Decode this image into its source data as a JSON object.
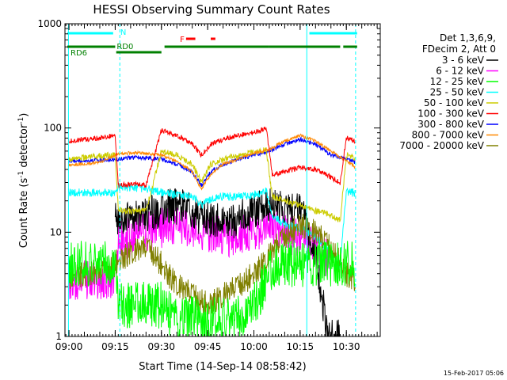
{
  "chart_data": {
    "type": "line",
    "title": "HESSI Observing Summary Count Rates",
    "xlabel": "Start Time (14-Sep-14 08:58:42)",
    "ylabel_main": "Count Rate (s",
    "ylabel_sup1": "-1",
    "ylabel_mid": " detector",
    "ylabel_sup2": "-1",
    "ylabel_end": ")",
    "yscale": "log",
    "ylim": [
      1,
      1000
    ],
    "xlim": [
      "08:58:42",
      "10:41:00"
    ],
    "x_ticks": [
      "09:00",
      "09:15",
      "09:30",
      "09:45",
      "10:00",
      "10:15",
      "10:30"
    ],
    "y_ticks": [
      "1000",
      "100",
      "10",
      "1"
    ],
    "legend": {
      "placement": "right",
      "header": [
        "Det 1,3,6,9,",
        "FDecim 2, Att 0"
      ],
      "entries": [
        {
          "label": "3 - 6 keV",
          "color": "#000000"
        },
        {
          "label": "6 - 12 keV",
          "color": "#ff00ff"
        },
        {
          "label": "12 - 25 keV",
          "color": "#00ff00"
        },
        {
          "label": "25 - 50 keV",
          "color": "#00ffff"
        },
        {
          "label": "50 - 100 keV",
          "color": "#cccc00"
        },
        {
          "label": "100 - 300 keV",
          "color": "#ff0000"
        },
        {
          "label": "300 - 800 keV",
          "color": "#0000ff"
        },
        {
          "label": "800 - 7000 keV",
          "color": "#ff8800"
        },
        {
          "label": "7000 - 20000 keV",
          "color": "#808000"
        }
      ]
    },
    "flags": [
      {
        "label": "N",
        "color": "#00ffff",
        "segments": [
          [
            "08:59:30",
            "09:14:20"
          ],
          [
            "10:18:00",
            "10:33:30"
          ]
        ]
      },
      {
        "label": "RD0",
        "color": "#008000",
        "segments": [
          [
            "09:15:20",
            "09:30:00"
          ]
        ]
      },
      {
        "label": "RD6",
        "color": "#008000",
        "segments": [
          [
            "08:59:30",
            "09:15:00"
          ],
          [
            "09:31:00",
            "10:05:00"
          ],
          [
            "10:05:00",
            "10:28:00"
          ],
          [
            "10:29:00",
            "10:33:30"
          ]
        ]
      },
      {
        "label": "F",
        "color": "#ff0000",
        "segments": [
          [
            "09:38:00",
            "09:41:00"
          ],
          [
            "09:46:00",
            "09:47:30"
          ]
        ]
      }
    ],
    "vertical_lines": [
      {
        "time": "08:59:50",
        "color": "#00ffff",
        "style": "solid"
      },
      {
        "time": "09:16:30",
        "color": "#00ffff",
        "style": "dashed"
      },
      {
        "time": "10:17:10",
        "color": "#00ffff",
        "style": "solid"
      },
      {
        "time": "10:33:00",
        "color": "#00ffff",
        "style": "dashed"
      }
    ],
    "series": [
      {
        "name": "3 - 6 keV",
        "color": "#000000",
        "noise": 0.35,
        "x": [
          "09:15:00",
          "09:20:00",
          "09:25:00",
          "09:30:00",
          "09:33:00",
          "09:38:00",
          "09:44:00",
          "09:48:00",
          "09:52:00",
          "09:56:00",
          "10:00:00",
          "10:04:00",
          "10:06:00",
          "10:10:00",
          "10:16:00",
          "10:20:00",
          "10:24:00",
          "10:28:00"
        ],
        "y": [
          14,
          14,
          15,
          16,
          18,
          17,
          13,
          13,
          12,
          14,
          16,
          20,
          18,
          17,
          16,
          6,
          1,
          1
        ]
      },
      {
        "name": "6 - 12 keV",
        "color": "#ff00ff",
        "noise": 0.4,
        "x": [
          "08:59:50",
          "09:05:00",
          "09:10:00",
          "09:15:00",
          "09:16:00",
          "09:20:00",
          "09:25:00",
          "09:30:00",
          "09:33:00",
          "09:38:00",
          "09:44:00",
          "09:48:00",
          "09:52:00",
          "09:56:00",
          "10:00:00",
          "10:04:00",
          "10:06:00",
          "10:10:00",
          "10:16:00",
          "10:20:00",
          "10:25:00"
        ],
        "y": [
          3.5,
          3.5,
          3.5,
          3.5,
          8,
          9,
          10,
          11,
          12,
          11,
          10,
          10,
          9,
          9.5,
          10,
          12,
          11,
          10,
          9,
          7,
          5
        ]
      },
      {
        "name": "12 - 25 keV",
        "color": "#00ff00",
        "noise": 0.45,
        "x": [
          "08:59:50",
          "09:05:00",
          "09:10:00",
          "09:15:00",
          "09:16:00",
          "09:20:00",
          "09:25:00",
          "09:30:00",
          "09:35:00",
          "09:40:00",
          "09:45:00",
          "09:50:00",
          "09:55:00",
          "10:00:00",
          "10:05:00",
          "10:10:00",
          "10:15:00",
          "10:20:00",
          "10:25:00",
          "10:30:00",
          "10:33:00"
        ],
        "y": [
          5,
          5,
          5,
          5,
          2,
          2,
          2,
          2,
          1.5,
          1.5,
          1.4,
          1.5,
          1.5,
          2,
          4,
          5,
          5,
          5,
          5,
          5,
          5
        ]
      },
      {
        "name": "25 - 50 keV",
        "color": "#00ffff",
        "noise": 0.08,
        "x": [
          "08:59:50",
          "09:05:00",
          "09:10:00",
          "09:15:00",
          "09:16:00",
          "09:20:00",
          "09:25:00",
          "09:30:00",
          "09:35:00",
          "09:40:00",
          "09:43:00",
          "09:46:00",
          "09:50:00",
          "09:55:00",
          "10:00:00",
          "10:04:00",
          "10:06:00",
          "10:10:00",
          "10:15:00",
          "10:20:00",
          "10:24:00",
          "10:28:00",
          "10:30:00",
          "10:33:00"
        ],
        "y": [
          24,
          24,
          24,
          24,
          27,
          27,
          26,
          24,
          23,
          22,
          18,
          21,
          22,
          22,
          23,
          25,
          14,
          12,
          11,
          9,
          7,
          5,
          24,
          24
        ]
      },
      {
        "name": "50 - 100 keV",
        "color": "#cccc00",
        "noise": 0.06,
        "x": [
          "08:59:50",
          "09:05:00",
          "09:10:00",
          "09:15:00",
          "09:16:00",
          "09:20:00",
          "09:25:00",
          "09:30:00",
          "09:35:00",
          "09:40:00",
          "09:43:00",
          "09:46:00",
          "09:50:00",
          "09:55:00",
          "10:00:00",
          "10:04:00",
          "10:06:00",
          "10:10:00",
          "10:15:00",
          "10:20:00",
          "10:24:00",
          "10:28:00",
          "10:30:00",
          "10:33:00"
        ],
        "y": [
          50,
          52,
          54,
          55,
          16,
          16,
          16,
          60,
          55,
          45,
          30,
          45,
          50,
          55,
          58,
          62,
          22,
          20,
          18,
          16,
          15,
          13,
          55,
          52
        ]
      },
      {
        "name": "100 - 300 keV",
        "color": "#ff0000",
        "noise": 0.05,
        "x": [
          "08:59:50",
          "09:05:00",
          "09:10:00",
          "09:15:00",
          "09:16:00",
          "09:20:00",
          "09:25:00",
          "09:30:00",
          "09:35:00",
          "09:40:00",
          "09:43:00",
          "09:46:00",
          "09:50:00",
          "09:55:00",
          "10:00:00",
          "10:04:00",
          "10:06:00",
          "10:10:00",
          "10:15:00",
          "10:20:00",
          "10:24:00",
          "10:28:00",
          "10:30:00",
          "10:33:00"
        ],
        "y": [
          75,
          78,
          80,
          85,
          28,
          29,
          28,
          95,
          85,
          70,
          55,
          70,
          78,
          85,
          90,
          100,
          35,
          38,
          42,
          40,
          35,
          30,
          80,
          75
        ]
      },
      {
        "name": "300 - 800 keV",
        "color": "#0000ff",
        "noise": 0.04,
        "x": [
          "08:59:50",
          "09:05:00",
          "09:10:00",
          "09:15:00",
          "09:20:00",
          "09:25:00",
          "09:30:00",
          "09:35:00",
          "09:40:00",
          "09:43:00",
          "09:46:00",
          "09:50:00",
          "09:55:00",
          "10:00:00",
          "10:05:00",
          "10:10:00",
          "10:15:00",
          "10:20:00",
          "10:25:00",
          "10:30:00",
          "10:33:00"
        ],
        "y": [
          48,
          48,
          49,
          50,
          52,
          52,
          50,
          45,
          38,
          28,
          38,
          45,
          50,
          55,
          60,
          70,
          78,
          70,
          55,
          50,
          47
        ]
      },
      {
        "name": "800 - 7000 keV",
        "color": "#ff8800",
        "noise": 0.03,
        "x": [
          "08:59:50",
          "09:05:00",
          "09:10:00",
          "09:15:00",
          "09:20:00",
          "09:25:00",
          "09:30:00",
          "09:35:00",
          "09:40:00",
          "09:43:00",
          "09:46:00",
          "09:50:00",
          "09:55:00",
          "10:00:00",
          "10:05:00",
          "10:10:00",
          "10:15:00",
          "10:20:00",
          "10:25:00",
          "10:30:00",
          "10:33:00"
        ],
        "y": [
          44,
          45,
          47,
          55,
          58,
          57,
          55,
          48,
          38,
          26,
          36,
          45,
          50,
          58,
          62,
          75,
          85,
          75,
          60,
          48,
          42
        ]
      },
      {
        "name": "7000 - 20000 keV",
        "color": "#808000",
        "noise": 0.25,
        "x": [
          "08:59:50",
          "09:05:00",
          "09:10:00",
          "09:15:00",
          "09:20:00",
          "09:25:00",
          "09:28:00",
          "09:32:00",
          "09:36:00",
          "09:40:00",
          "09:45:00",
          "09:50:00",
          "09:55:00",
          "10:00:00",
          "10:05:00",
          "10:10:00",
          "10:15:00",
          "10:20:00",
          "10:25:00",
          "10:30:00",
          "10:33:00"
        ],
        "y": [
          3.8,
          4,
          4,
          5,
          6.5,
          7,
          6,
          4,
          3,
          2.5,
          2,
          2.5,
          3,
          4,
          6,
          9,
          12,
          10,
          7,
          4,
          3.5
        ]
      }
    ]
  },
  "footer_timestamp": "15-Feb-2017 05:06"
}
